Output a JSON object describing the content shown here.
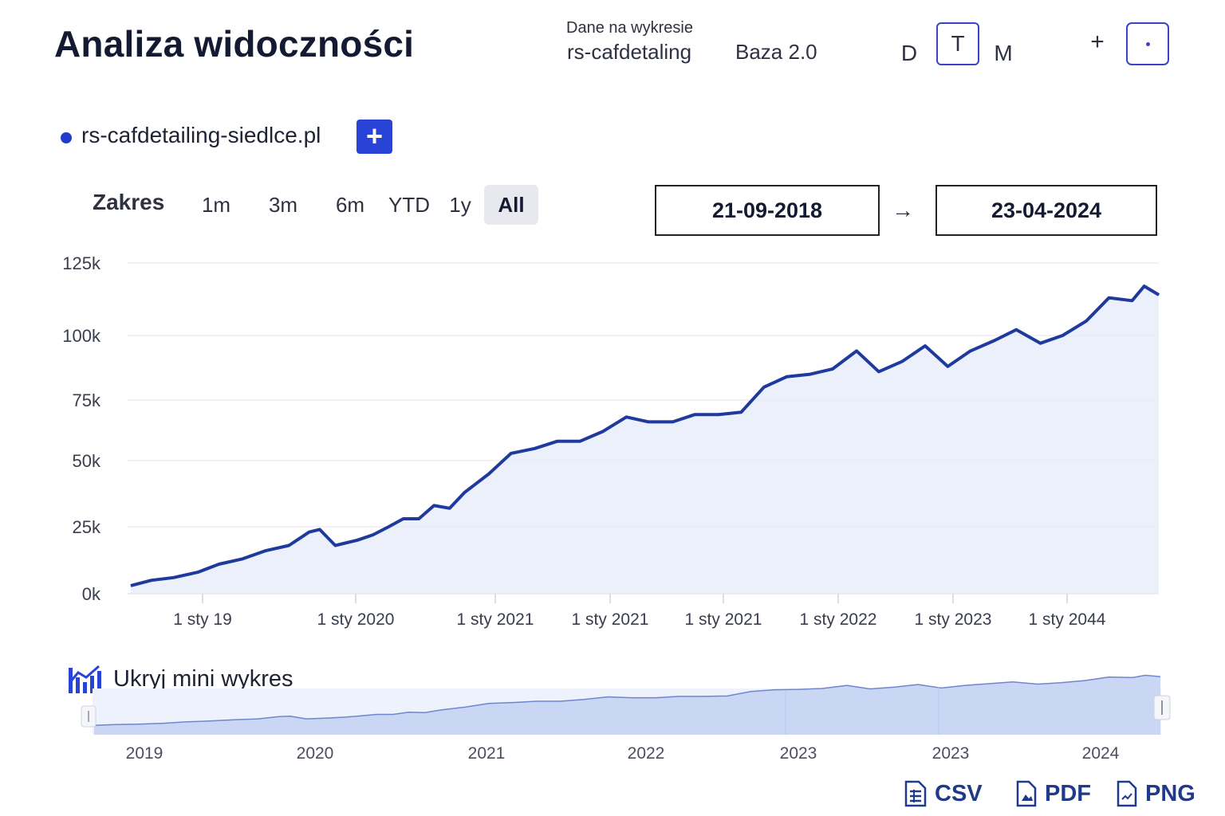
{
  "header": {
    "title": "Analiza widoczności",
    "dataset_caption": "Dane na wykresie",
    "dataset_domain": "rs-cafdetaling",
    "dataset_base": "Baza 2.0",
    "periods": [
      "D",
      "T",
      "M"
    ],
    "active_period": "T",
    "add_label": "+"
  },
  "legend": {
    "label": "rs-cafdetailing-siedlce.pl",
    "color": "#1f3ccc",
    "add_label": "+"
  },
  "range": {
    "label": "Zakres",
    "options": [
      "1m",
      "3m",
      "6m",
      "YTD",
      "1y",
      "All"
    ],
    "active": "All",
    "date_from": "21-09-2018",
    "date_to": "23-04-2024",
    "arrow": "→"
  },
  "colors": {
    "line": "#1e3a9c",
    "area": "#e6ecfa",
    "accent": "#3b43c9",
    "grid": "#e4e6ec",
    "mini_fill": "#c9d7f5",
    "mini_line": "#6f86cf"
  },
  "chart_data": {
    "type": "area",
    "series": [
      {
        "name": "rs-cafdetailing-siedlce.pl",
        "x": [
          "2018-09-21",
          "2018-11-01",
          "2018-12-15",
          "2019-02-01",
          "2019-03-15",
          "2019-05-01",
          "2019-06-15",
          "2019-08-01",
          "2019-09-10",
          "2019-10-01",
          "2019-11-01",
          "2019-12-15",
          "2020-01-15",
          "2020-02-15",
          "2020-03-15",
          "2020-04-15",
          "2020-05-15",
          "2020-06-15",
          "2020-07-15",
          "2020-09-01",
          "2020-10-15",
          "2020-12-01",
          "2021-01-15",
          "2021-03-01",
          "2021-04-15",
          "2021-06-01",
          "2021-07-15",
          "2021-09-01",
          "2021-10-15",
          "2021-12-01",
          "2022-01-15",
          "2022-03-01",
          "2022-04-15",
          "2022-06-01",
          "2022-07-15",
          "2022-09-01",
          "2022-10-15",
          "2022-12-01",
          "2023-01-15",
          "2023-03-01",
          "2023-04-15",
          "2023-06-01",
          "2023-07-15",
          "2023-09-01",
          "2023-10-15",
          "2023-12-01",
          "2024-01-15",
          "2024-03-01",
          "2024-03-25",
          "2024-04-23"
        ],
        "values": [
          3000,
          5000,
          6000,
          8000,
          11000,
          13000,
          16000,
          18000,
          23000,
          24000,
          18000,
          20000,
          22000,
          25000,
          28000,
          28000,
          33000,
          32000,
          38000,
          45000,
          53000,
          55000,
          58000,
          58000,
          62000,
          68000,
          66000,
          66000,
          69000,
          69000,
          70000,
          80000,
          84000,
          85000,
          87000,
          94000,
          86000,
          90000,
          96000,
          88000,
          94000,
          98000,
          102000,
          97000,
          100000,
          105000,
          113000,
          112000,
          117000,
          114000
        ]
      }
    ],
    "ylim": [
      0,
      125000
    ],
    "yticks": [
      0,
      25000,
      50000,
      75000,
      100000,
      125000
    ],
    "ytick_labels": [
      "0k",
      "25k",
      "50k",
      "75k",
      "100k",
      "125k"
    ],
    "xtick_labels": [
      "1 sty 19",
      "1 sty 2020",
      "1 sty 2021",
      "1 sty 2021",
      "1 sty 2021",
      "1 sty 2022",
      "1 sty 2023",
      "1 sty 2044"
    ],
    "grid": true,
    "legend_position": "top-left"
  },
  "mini_chart": {
    "toggle_label": "Ukryj mini wykres",
    "year_labels": [
      "2019",
      "2020",
      "2021",
      "2022",
      "2023",
      "2023",
      "2024"
    ]
  },
  "exports": [
    {
      "label": "CSV",
      "icon": "csv-file-icon"
    },
    {
      "label": "PDF",
      "icon": "pdf-file-icon"
    },
    {
      "label": "PNG",
      "icon": "png-file-icon"
    }
  ]
}
